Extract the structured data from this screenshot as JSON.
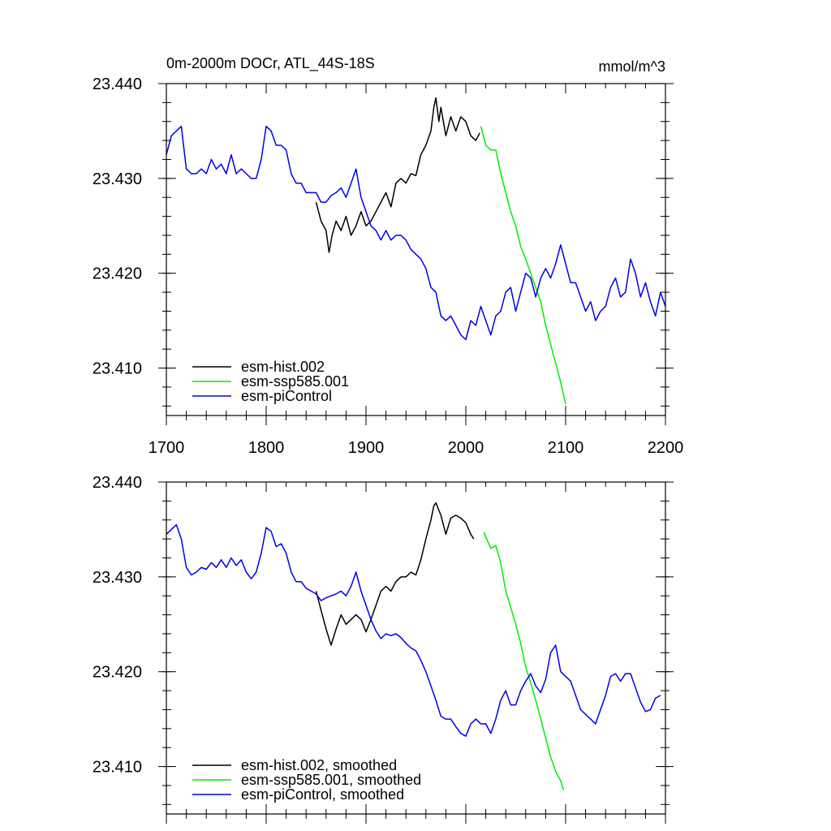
{
  "chart_data": [
    {
      "type": "line",
      "title": "0m-2000m DOCr, ATL_44S-18S",
      "units": "mmol/m^3",
      "xlim": [
        1700,
        2200
      ],
      "ylim": [
        23.405,
        23.44
      ],
      "x_ticks": [
        1700,
        1800,
        1900,
        2000,
        2100,
        2200
      ],
      "x_tick_labels": [
        "1700",
        "1800",
        "1900",
        "2000",
        "2100",
        "2200"
      ],
      "y_ticks": [
        23.41,
        23.42,
        23.43,
        23.44
      ],
      "y_tick_labels": [
        "23.410",
        "23.420",
        "23.430",
        "23.440"
      ],
      "legend_position": "bottom-left",
      "series": [
        {
          "name": "esm-hist.002",
          "color": "#000000",
          "x": [
            1850,
            1855,
            1860,
            1863,
            1866,
            1870,
            1875,
            1880,
            1885,
            1890,
            1895,
            1900,
            1905,
            1910,
            1915,
            1920,
            1925,
            1930,
            1935,
            1940,
            1945,
            1950,
            1955,
            1960,
            1965,
            1968,
            1970,
            1973,
            1975,
            1980,
            1985,
            1990,
            1995,
            2000,
            2005,
            2010,
            2014
          ],
          "y": [
            23.4275,
            23.4255,
            23.4245,
            23.4222,
            23.424,
            23.4255,
            23.4245,
            23.426,
            23.424,
            23.425,
            23.4265,
            23.425,
            23.4255,
            23.4265,
            23.4275,
            23.4285,
            23.427,
            23.4295,
            23.43,
            23.4295,
            23.4305,
            23.4303,
            23.4325,
            23.4335,
            23.435,
            23.4375,
            23.4385,
            23.436,
            23.4375,
            23.4345,
            23.4365,
            23.435,
            23.4365,
            23.436,
            23.4345,
            23.434,
            23.4348
          ]
        },
        {
          "name": "esm-ssp585.001",
          "color": "#00ee00",
          "x": [
            2015,
            2020,
            2025,
            2030,
            2035,
            2040,
            2045,
            2050,
            2055,
            2060,
            2065,
            2070,
            2075,
            2080,
            2085,
            2090,
            2095,
            2100
          ],
          "y": [
            23.4355,
            23.4335,
            23.433,
            23.433,
            23.4305,
            23.4285,
            23.4265,
            23.425,
            23.4228,
            23.4215,
            23.42,
            23.4185,
            23.417,
            23.4145,
            23.4125,
            23.4105,
            23.4085,
            23.4062
          ]
        },
        {
          "name": "esm-piControl",
          "color": "#0000ee",
          "x": [
            1700,
            1705,
            1710,
            1715,
            1720,
            1725,
            1730,
            1735,
            1740,
            1745,
            1750,
            1755,
            1760,
            1765,
            1770,
            1775,
            1780,
            1785,
            1790,
            1795,
            1800,
            1805,
            1810,
            1815,
            1820,
            1825,
            1830,
            1835,
            1840,
            1845,
            1850,
            1855,
            1860,
            1865,
            1870,
            1875,
            1880,
            1885,
            1890,
            1895,
            1900,
            1905,
            1910,
            1915,
            1920,
            1925,
            1930,
            1935,
            1940,
            1945,
            1950,
            1955,
            1960,
            1965,
            1970,
            1975,
            1980,
            1985,
            1990,
            1995,
            2000,
            2005,
            2010,
            2015,
            2020,
            2025,
            2030,
            2035,
            2040,
            2045,
            2050,
            2055,
            2060,
            2065,
            2070,
            2075,
            2080,
            2085,
            2090,
            2095,
            2100,
            2105,
            2110,
            2115,
            2120,
            2125,
            2130,
            2135,
            2140,
            2145,
            2150,
            2155,
            2160,
            2165,
            2170,
            2175,
            2180,
            2185,
            2190,
            2195,
            2200
          ],
          "y": [
            23.4325,
            23.4345,
            23.435,
            23.4355,
            23.431,
            23.4305,
            23.4305,
            23.431,
            23.4305,
            23.432,
            23.431,
            23.4315,
            23.4305,
            23.4325,
            23.4305,
            23.431,
            23.4305,
            23.43,
            23.43,
            23.432,
            23.4355,
            23.435,
            23.4335,
            23.4335,
            23.433,
            23.4305,
            23.4295,
            23.4295,
            23.4285,
            23.4285,
            23.4285,
            23.4275,
            23.4275,
            23.4282,
            23.4285,
            23.429,
            23.428,
            23.4295,
            23.431,
            23.428,
            23.4265,
            23.425,
            23.4245,
            23.4235,
            23.4245,
            23.4235,
            23.424,
            23.424,
            23.4235,
            23.4225,
            23.422,
            23.4215,
            23.4205,
            23.4185,
            23.418,
            23.4155,
            23.415,
            23.4155,
            23.4145,
            23.4135,
            23.413,
            23.415,
            23.4145,
            23.4165,
            23.415,
            23.4135,
            23.4155,
            23.416,
            23.418,
            23.4185,
            23.416,
            23.418,
            23.42,
            23.4195,
            23.4175,
            23.4195,
            23.4205,
            23.4195,
            23.421,
            23.423,
            23.421,
            23.419,
            23.419,
            23.4175,
            23.416,
            23.417,
            23.415,
            23.416,
            23.4165,
            23.4185,
            23.4195,
            23.4175,
            23.418,
            23.4215,
            23.42,
            23.4175,
            23.419,
            23.417,
            23.4155,
            23.418,
            23.4165
          ]
        }
      ]
    },
    {
      "type": "line",
      "xlim": [
        1700,
        2200
      ],
      "ylim": [
        23.405,
        23.44
      ],
      "x_ticks": [
        1700,
        1800,
        1900,
        2000,
        2100,
        2200
      ],
      "y_ticks": [
        23.41,
        23.42,
        23.43,
        23.44
      ],
      "y_tick_labels": [
        "23.410",
        "23.420",
        "23.430",
        "23.440"
      ],
      "legend_position": "bottom-left",
      "series": [
        {
          "name": "esm-hist.002, smoothed",
          "color": "#000000",
          "x": [
            1850,
            1855,
            1860,
            1865,
            1870,
            1875,
            1880,
            1885,
            1890,
            1895,
            1900,
            1905,
            1910,
            1915,
            1920,
            1925,
            1930,
            1935,
            1940,
            1945,
            1950,
            1955,
            1960,
            1965,
            1968,
            1970,
            1975,
            1980,
            1985,
            1990,
            1995,
            2000,
            2005,
            2008
          ],
          "y": [
            23.4285,
            23.4265,
            23.4245,
            23.4228,
            23.4245,
            23.426,
            23.425,
            23.4255,
            23.426,
            23.4255,
            23.4242,
            23.4255,
            23.427,
            23.4285,
            23.429,
            23.4285,
            23.4295,
            23.43,
            23.43,
            23.4305,
            23.4302,
            23.4318,
            23.434,
            23.436,
            23.4375,
            23.4378,
            23.4365,
            23.4345,
            23.4362,
            23.4365,
            23.4362,
            23.4357,
            23.4345,
            23.434
          ]
        },
        {
          "name": "esm-ssp585.001, smoothed",
          "color": "#00ee00",
          "x": [
            2018,
            2025,
            2030,
            2035,
            2040,
            2045,
            2050,
            2055,
            2060,
            2065,
            2070,
            2075,
            2080,
            2085,
            2090,
            2095,
            2098
          ],
          "y": [
            23.4347,
            23.433,
            23.4333,
            23.4315,
            23.4285,
            23.4268,
            23.425,
            23.423,
            23.4205,
            23.4188,
            23.417,
            23.415,
            23.413,
            23.411,
            23.4095,
            23.4085,
            23.4075
          ]
        },
        {
          "name": "esm-piControl, smoothed",
          "color": "#0000ee",
          "x": [
            1700,
            1705,
            1710,
            1715,
            1720,
            1725,
            1730,
            1735,
            1740,
            1745,
            1750,
            1755,
            1760,
            1765,
            1770,
            1775,
            1780,
            1785,
            1790,
            1795,
            1800,
            1805,
            1810,
            1815,
            1820,
            1825,
            1830,
            1835,
            1840,
            1845,
            1850,
            1855,
            1860,
            1865,
            1870,
            1875,
            1880,
            1885,
            1890,
            1895,
            1900,
            1905,
            1910,
            1915,
            1920,
            1925,
            1930,
            1935,
            1940,
            1945,
            1950,
            1955,
            1960,
            1965,
            1970,
            1975,
            1980,
            1985,
            1990,
            1995,
            2000,
            2005,
            2010,
            2015,
            2020,
            2025,
            2030,
            2035,
            2040,
            2045,
            2050,
            2055,
            2060,
            2065,
            2070,
            2075,
            2080,
            2085,
            2090,
            2095,
            2100,
            2105,
            2110,
            2115,
            2120,
            2125,
            2130,
            2135,
            2140,
            2145,
            2150,
            2155,
            2160,
            2165,
            2170,
            2175,
            2180,
            2185,
            2190,
            2195
          ],
          "y": [
            23.4345,
            23.435,
            23.4355,
            23.434,
            23.431,
            23.4302,
            23.4305,
            23.431,
            23.4308,
            23.4315,
            23.431,
            23.4318,
            23.431,
            23.432,
            23.4312,
            23.4318,
            23.4305,
            23.4298,
            23.4305,
            23.4325,
            23.4352,
            23.4348,
            23.4332,
            23.4335,
            23.4325,
            23.4305,
            23.4295,
            23.4295,
            23.4288,
            23.4285,
            23.4282,
            23.4275,
            23.4278,
            23.428,
            23.4282,
            23.4285,
            23.428,
            23.429,
            23.4305,
            23.4285,
            23.427,
            23.4255,
            23.4243,
            23.4235,
            23.424,
            23.4238,
            23.424,
            23.4236,
            23.423,
            23.4225,
            23.4222,
            23.4212,
            23.42,
            23.4185,
            23.417,
            23.4153,
            23.415,
            23.415,
            23.4142,
            23.4135,
            23.4132,
            23.4145,
            23.415,
            23.4145,
            23.4145,
            23.4135,
            23.415,
            23.417,
            23.418,
            23.4165,
            23.4165,
            23.418,
            23.419,
            23.4198,
            23.4185,
            23.4178,
            23.4192,
            23.422,
            23.4228,
            23.42,
            23.4195,
            23.419,
            23.4175,
            23.416,
            23.4155,
            23.415,
            23.4145,
            23.416,
            23.4175,
            23.4195,
            23.4198,
            23.419,
            23.4198,
            23.4198,
            23.4183,
            23.4168,
            23.4158,
            23.416,
            23.4172,
            23.4175
          ]
        }
      ]
    }
  ]
}
